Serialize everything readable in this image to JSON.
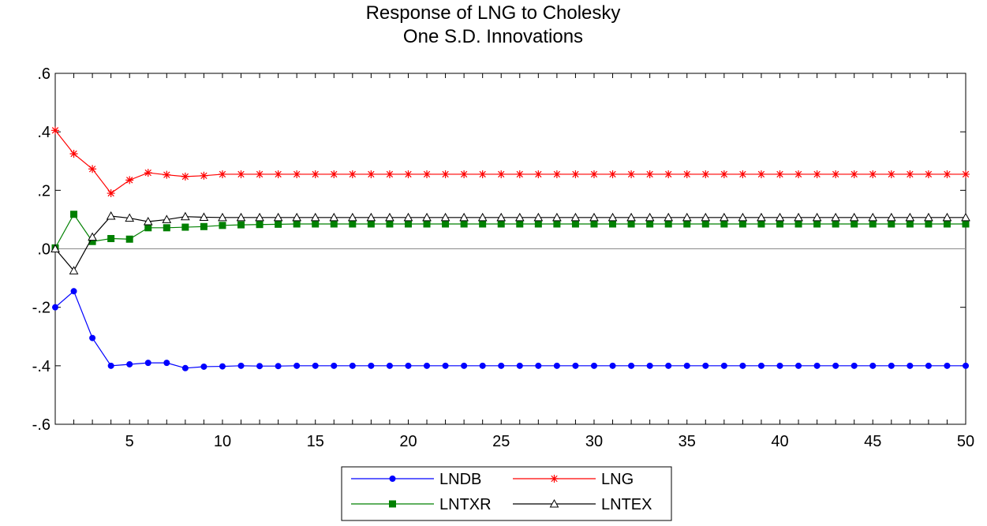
{
  "chart_data": {
    "type": "line",
    "title_lines": [
      "Response of LNG to Cholesky",
      "One S.D. Innovations"
    ],
    "xlim": [
      1,
      50
    ],
    "ylim": [
      -0.6,
      0.6
    ],
    "x_ticks": [
      5,
      10,
      15,
      20,
      25,
      30,
      35,
      40,
      45,
      50
    ],
    "x_tick_labels": [
      "5",
      "10",
      "15",
      "20",
      "25",
      "30",
      "35",
      "40",
      "45",
      "50"
    ],
    "y_ticks": [
      -0.6,
      -0.4,
      -0.2,
      0.0,
      0.2,
      0.4,
      0.6
    ],
    "y_tick_labels": [
      "-.6",
      "-.4",
      "-.2",
      ".0",
      ".2",
      ".4",
      ".6"
    ],
    "zero_line": true,
    "grid": false,
    "legend_position": "bottom-center",
    "series": [
      {
        "name": "LNDB",
        "color": "#0000ff",
        "marker": "circle",
        "values": [
          -0.2,
          -0.145,
          -0.305,
          -0.4,
          -0.395,
          -0.39,
          -0.39,
          -0.408,
          -0.403,
          -0.402,
          -0.4,
          -0.401,
          -0.401,
          -0.4,
          -0.4,
          -0.4,
          -0.4,
          -0.4,
          -0.4,
          -0.4,
          -0.4,
          -0.4,
          -0.4,
          -0.4,
          -0.4,
          -0.4,
          -0.4,
          -0.4,
          -0.4,
          -0.4,
          -0.4,
          -0.4,
          -0.4,
          -0.4,
          -0.4,
          -0.4,
          -0.4,
          -0.4,
          -0.4,
          -0.4,
          -0.4,
          -0.4,
          -0.4,
          -0.4,
          -0.4,
          -0.4,
          -0.4,
          -0.4,
          -0.4,
          -0.4
        ]
      },
      {
        "name": "LNG",
        "color": "#ff0000",
        "marker": "star",
        "values": [
          0.405,
          0.325,
          0.273,
          0.19,
          0.235,
          0.26,
          0.253,
          0.247,
          0.25,
          0.255,
          0.255,
          0.255,
          0.255,
          0.255,
          0.255,
          0.255,
          0.255,
          0.255,
          0.255,
          0.255,
          0.255,
          0.255,
          0.255,
          0.255,
          0.255,
          0.255,
          0.255,
          0.255,
          0.255,
          0.255,
          0.255,
          0.255,
          0.255,
          0.255,
          0.255,
          0.255,
          0.255,
          0.255,
          0.255,
          0.255,
          0.255,
          0.255,
          0.255,
          0.255,
          0.255,
          0.255,
          0.255,
          0.255,
          0.255,
          0.255
        ]
      },
      {
        "name": "LNTXR",
        "color": "#008000",
        "marker": "square",
        "values": [
          0.003,
          0.118,
          0.025,
          0.035,
          0.033,
          0.072,
          0.072,
          0.074,
          0.076,
          0.08,
          0.082,
          0.083,
          0.084,
          0.085,
          0.085,
          0.085,
          0.085,
          0.085,
          0.085,
          0.085,
          0.085,
          0.085,
          0.085,
          0.085,
          0.085,
          0.085,
          0.085,
          0.085,
          0.085,
          0.085,
          0.085,
          0.085,
          0.085,
          0.085,
          0.085,
          0.085,
          0.085,
          0.085,
          0.085,
          0.085,
          0.085,
          0.085,
          0.085,
          0.085,
          0.085,
          0.085,
          0.085,
          0.085,
          0.085,
          0.085
        ]
      },
      {
        "name": "LNTEX",
        "color": "#000000",
        "marker": "triangle",
        "values": [
          0.0,
          -0.075,
          0.04,
          0.112,
          0.105,
          0.093,
          0.1,
          0.11,
          0.108,
          0.107,
          0.107,
          0.107,
          0.107,
          0.107,
          0.107,
          0.107,
          0.107,
          0.107,
          0.107,
          0.107,
          0.107,
          0.107,
          0.107,
          0.107,
          0.107,
          0.107,
          0.107,
          0.107,
          0.107,
          0.107,
          0.107,
          0.107,
          0.107,
          0.107,
          0.107,
          0.107,
          0.107,
          0.107,
          0.107,
          0.107,
          0.107,
          0.107,
          0.107,
          0.107,
          0.107,
          0.107,
          0.107,
          0.107,
          0.107,
          0.107
        ]
      }
    ]
  }
}
